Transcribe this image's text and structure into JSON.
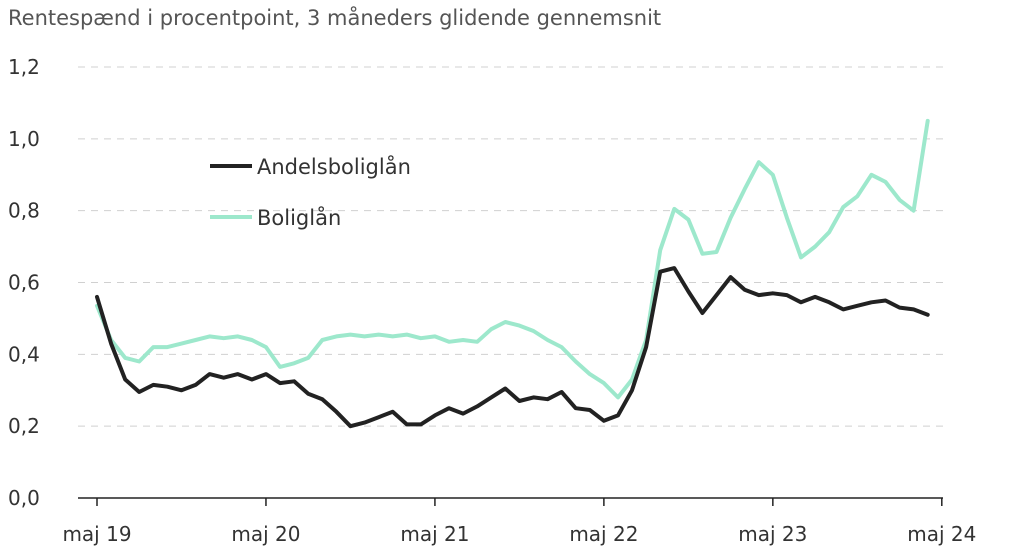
{
  "chart_data": {
    "type": "line",
    "title": "Rentespænd i procentpoint, 3 måneders glidende gennemsnit",
    "xlabel": "",
    "ylabel": "",
    "ylim": [
      0,
      1.2
    ],
    "y_ticks": [
      "0,0",
      "0,2",
      "0,4",
      "0,6",
      "0,8",
      "1,0",
      "1,2"
    ],
    "y_tick_values": [
      0,
      0.2,
      0.4,
      0.6,
      0.8,
      1.0,
      1.2
    ],
    "x_ticks": [
      "maj 19",
      "maj 20",
      "maj 21",
      "maj 22",
      "maj 23",
      "maj 24"
    ],
    "grid": "horizontal dashed",
    "legend_position": "upper-left inside",
    "x_start": "maj 19",
    "x_unit": "month",
    "series": [
      {
        "name": "Andelsboliglån",
        "color": "#222222",
        "values": [
          0.56,
          0.43,
          0.33,
          0.295,
          0.315,
          0.31,
          0.3,
          0.315,
          0.345,
          0.335,
          0.345,
          0.33,
          0.345,
          0.32,
          0.325,
          0.29,
          0.275,
          0.24,
          0.2,
          0.21,
          0.225,
          0.24,
          0.205,
          0.205,
          0.23,
          0.25,
          0.235,
          0.255,
          0.28,
          0.305,
          0.27,
          0.28,
          0.275,
          0.295,
          0.25,
          0.245,
          0.215,
          0.23,
          0.3,
          0.42,
          0.63,
          0.64,
          0.575,
          0.515,
          0.565,
          0.615,
          0.58,
          0.565,
          0.57,
          0.565,
          0.545,
          0.56,
          0.545,
          0.525,
          0.535,
          0.545,
          0.55,
          0.53,
          0.525,
          0.51
        ]
      },
      {
        "name": "Boliglån",
        "color": "#9de8cc",
        "values": [
          0.535,
          0.44,
          0.39,
          0.38,
          0.42,
          0.42,
          0.43,
          0.44,
          0.45,
          0.445,
          0.45,
          0.44,
          0.42,
          0.365,
          0.375,
          0.39,
          0.44,
          0.45,
          0.455,
          0.45,
          0.455,
          0.45,
          0.455,
          0.445,
          0.45,
          0.435,
          0.44,
          0.435,
          0.47,
          0.49,
          0.48,
          0.465,
          0.44,
          0.42,
          0.38,
          0.345,
          0.32,
          0.28,
          0.33,
          0.44,
          0.69,
          0.805,
          0.775,
          0.68,
          0.685,
          0.78,
          0.86,
          0.935,
          0.9,
          0.78,
          0.67,
          0.7,
          0.74,
          0.81,
          0.84,
          0.9,
          0.88,
          0.83,
          0.8,
          1.05
        ]
      }
    ]
  }
}
